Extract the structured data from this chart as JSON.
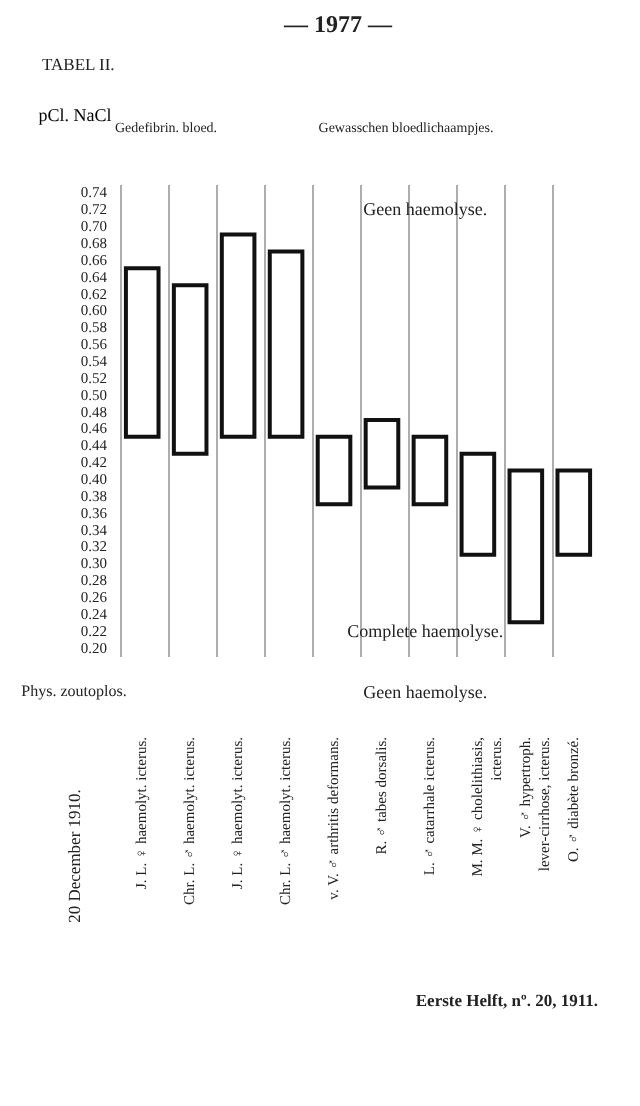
{
  "chart_data": {
    "type": "bar",
    "title": "TABEL II.",
    "ylabel": "pCl. NaCl",
    "categories": [
      "J. L. ♀ haemolyt. icterus.",
      "Chr. L. ♂ haemolyt. icterus.",
      "J. L. ♀ haemolyt. icterus.",
      "Chr. L. ♂ haemolyt. icterus.",
      "v. V. ♂ arthritis deformans.",
      "R. ♂ tabes dorsalis.",
      "L. ♂ catarrhale icterus.",
      "M. M. ♀ cholelithiasis, icterus.",
      "V. ♂ hypertroph. lever-cirrhose, icterus.",
      "O. ♂ diabète bronzé."
    ],
    "base": [
      0.45,
      0.43,
      0.45,
      0.45,
      0.37,
      0.39,
      0.37,
      0.31,
      0.23,
      0.31
    ],
    "values": [
      0.2,
      0.2,
      0.24,
      0.22,
      0.08,
      0.08,
      0.08,
      0.12,
      0.18,
      0.1
    ],
    "color": "#ffffff",
    "ylim": [
      0.19,
      0.75
    ],
    "yticks": [
      {
        "value": 0.2,
        "label": "0.20"
      },
      0.22,
      0.24,
      0.26,
      0.28,
      {
        "value": 0.3,
        "label": "0.30"
      },
      0.32,
      0.34,
      0.36,
      0.38,
      {
        "value": 0.4,
        "label": "0.40"
      },
      0.42,
      0.44,
      0.46,
      0.48,
      {
        "value": 0.5,
        "label": "0.50"
      },
      0.52,
      0.54,
      0.56,
      0.58,
      {
        "value": 0.6,
        "label": "0.60"
      },
      0.62,
      0.64,
      0.66,
      0.68,
      {
        "value": 0.7,
        "label": "0.70"
      },
      0.72,
      0.74
    ],
    "grid": "x",
    "annotations": [
      "— 1977 —",
      "Gedefibrin. bloed.",
      "Gewasschen bloedlichaampjes.",
      "Geen haemolyse.",
      "Complete haemolyse.",
      "Phys. zoutoplos.",
      "Geen haemolyse.",
      "20 December 1910.",
      "Eerste Helft, nº. 20, 1911."
    ]
  }
}
